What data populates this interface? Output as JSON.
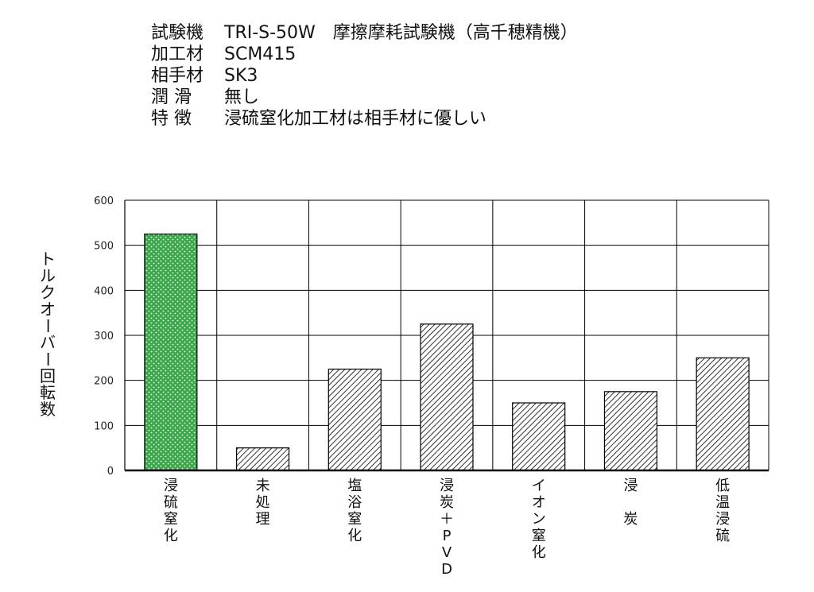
{
  "info": [
    {
      "key": "試験機",
      "value": "TRI-S-50W　摩擦摩耗試験機（高千穂精機）"
    },
    {
      "key": "加工材",
      "value": "SCM415"
    },
    {
      "key": "相手材",
      "value": "SK3"
    },
    {
      "key": "潤 滑",
      "value": "無し"
    },
    {
      "key": "特 徴",
      "value": "浸硫窒化加工材は相手材に優しい"
    }
  ],
  "colors": {
    "highlight": "#3aa84a",
    "hatch": "#000000",
    "grid": "#000000"
  },
  "chart_data": {
    "type": "bar",
    "categories": [
      "浸硫窒化",
      "未処理",
      "塩浴窒化",
      "浸炭＋PVD",
      "イオン窒化",
      "浸 炭",
      "低温浸硫"
    ],
    "category_lines": [
      [
        "浸",
        "硫",
        "窒",
        "化"
      ],
      [
        "未",
        "処",
        "理"
      ],
      [
        "塩",
        "浴",
        "窒",
        "化"
      ],
      [
        "浸",
        "炭",
        "＋",
        "P",
        "V",
        "D"
      ],
      [
        "イ",
        "オ",
        "ン",
        "窒",
        "化"
      ],
      [
        "浸",
        "",
        "炭"
      ],
      [
        "低",
        "温",
        "浸",
        "硫"
      ]
    ],
    "values": [
      525,
      50,
      225,
      325,
      150,
      175,
      250
    ],
    "highlight_index": 0,
    "ylabel": "トルクオーバー回転数",
    "ylim": [
      0,
      600
    ],
    "yticks": [
      0,
      100,
      200,
      300,
      400,
      500,
      600
    ],
    "grid": true
  }
}
